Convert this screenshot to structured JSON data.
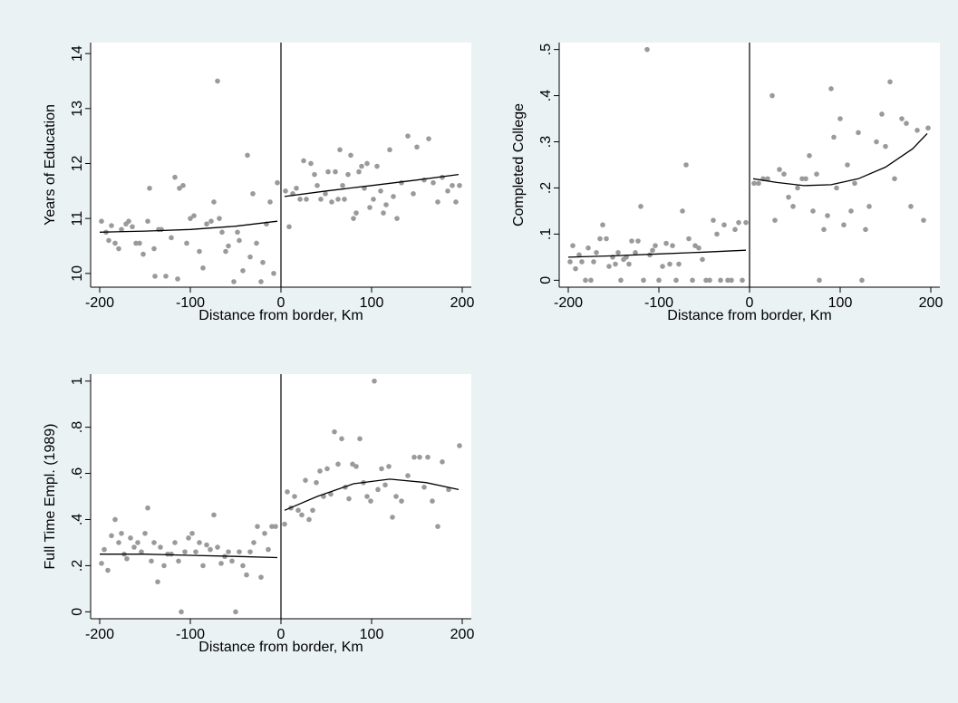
{
  "chart_data": [
    {
      "type": "scatter",
      "xlabel": "Distance from border, Km",
      "ylabel": "Years of Education",
      "xlim": [
        -210,
        210
      ],
      "ylim": [
        9.75,
        14.2
      ],
      "xticks": [
        -200,
        -100,
        0,
        100,
        200
      ],
      "xtick_labels": [
        "-200",
        "-100",
        "0",
        "100",
        "200"
      ],
      "yticks": [
        10,
        11,
        12,
        13,
        14
      ],
      "ytick_labels": [
        "10",
        "11",
        "12",
        "13",
        "14"
      ],
      "cutoff": 0,
      "points": [
        [
          -198,
          10.95
        ],
        [
          -193,
          10.75
        ],
        [
          -190,
          10.6
        ],
        [
          -187,
          10.87
        ],
        [
          -183,
          10.55
        ],
        [
          -179,
          10.45
        ],
        [
          -176,
          10.8
        ],
        [
          -171,
          10.9
        ],
        [
          -168,
          10.95
        ],
        [
          -164,
          10.85
        ],
        [
          -160,
          10.55
        ],
        [
          -156,
          10.55
        ],
        [
          -152,
          10.35
        ],
        [
          -147,
          10.95
        ],
        [
          -145,
          11.55
        ],
        [
          -140,
          10.45
        ],
        [
          -139,
          9.95
        ],
        [
          -135,
          10.8
        ],
        [
          -132,
          10.8
        ],
        [
          -127,
          9.95
        ],
        [
          -121,
          10.65
        ],
        [
          -117,
          11.75
        ],
        [
          -114,
          9.9
        ],
        [
          -112,
          11.55
        ],
        [
          -108,
          11.6
        ],
        [
          -104,
          10.55
        ],
        [
          -100,
          11.0
        ],
        [
          -96,
          11.05
        ],
        [
          -90,
          10.4
        ],
        [
          -86,
          10.1
        ],
        [
          -82,
          10.9
        ],
        [
          -77,
          10.95
        ],
        [
          -74,
          11.3
        ],
        [
          -70,
          13.5
        ],
        [
          -68,
          11.0
        ],
        [
          -65,
          10.75
        ],
        [
          -61,
          10.4
        ],
        [
          -58,
          10.5
        ],
        [
          -52,
          9.85
        ],
        [
          -48,
          10.75
        ],
        [
          -46,
          10.6
        ],
        [
          -42,
          10.05
        ],
        [
          -37,
          12.15
        ],
        [
          -34,
          10.3
        ],
        [
          -31,
          11.45
        ],
        [
          -27,
          10.55
        ],
        [
          -22,
          9.85
        ],
        [
          -20,
          10.2
        ],
        [
          -16,
          10.9
        ],
        [
          -12,
          11.3
        ],
        [
          -8,
          10.0
        ],
        [
          -4,
          11.65
        ],
        [
          5,
          11.5
        ],
        [
          9,
          10.85
        ],
        [
          13,
          11.45
        ],
        [
          17,
          11.55
        ],
        [
          21,
          11.35
        ],
        [
          25,
          12.05
        ],
        [
          28,
          11.35
        ],
        [
          33,
          12.0
        ],
        [
          37,
          11.8
        ],
        [
          40,
          11.6
        ],
        [
          44,
          11.35
        ],
        [
          49,
          11.45
        ],
        [
          52,
          11.85
        ],
        [
          56,
          11.3
        ],
        [
          60,
          11.85
        ],
        [
          63,
          11.35
        ],
        [
          65,
          12.25
        ],
        [
          68,
          11.6
        ],
        [
          70,
          11.35
        ],
        [
          74,
          11.8
        ],
        [
          77,
          12.15
        ],
        [
          80,
          11.0
        ],
        [
          83,
          11.1
        ],
        [
          86,
          11.85
        ],
        [
          89,
          11.95
        ],
        [
          92,
          11.55
        ],
        [
          95,
          12.0
        ],
        [
          98,
          11.2
        ],
        [
          102,
          11.35
        ],
        [
          106,
          11.95
        ],
        [
          110,
          11.5
        ],
        [
          113,
          11.1
        ],
        [
          116,
          11.25
        ],
        [
          120,
          12.25
        ],
        [
          124,
          11.4
        ],
        [
          128,
          11.0
        ],
        [
          133,
          11.65
        ],
        [
          140,
          12.5
        ],
        [
          146,
          11.45
        ],
        [
          150,
          12.3
        ],
        [
          158,
          11.7
        ],
        [
          163,
          12.45
        ],
        [
          168,
          11.65
        ],
        [
          173,
          11.3
        ],
        [
          178,
          11.75
        ],
        [
          184,
          11.5
        ],
        [
          189,
          11.6
        ],
        [
          193,
          11.3
        ],
        [
          197,
          11.6
        ]
      ],
      "fit_left": [
        [
          -200,
          10.75
        ],
        [
          -150,
          10.77
        ],
        [
          -100,
          10.8
        ],
        [
          -50,
          10.86
        ],
        [
          -4,
          10.95
        ]
      ],
      "fit_right": [
        [
          4,
          11.4
        ],
        [
          50,
          11.5
        ],
        [
          100,
          11.6
        ],
        [
          150,
          11.7
        ],
        [
          196,
          11.8
        ]
      ]
    },
    {
      "type": "scatter",
      "xlabel": "Distance from border, Km",
      "ylabel": "Completed College",
      "xlim": [
        -210,
        210
      ],
      "ylim": [
        -0.015,
        0.515
      ],
      "xticks": [
        -200,
        -100,
        0,
        100,
        200
      ],
      "xtick_labels": [
        "-200",
        "-100",
        "0",
        "100",
        "200"
      ],
      "yticks": [
        0,
        0.1,
        0.2,
        0.3,
        0.4,
        0.5
      ],
      "ytick_labels": [
        "0",
        ".1",
        ".2",
        ".3",
        ".4",
        ".5"
      ],
      "cutoff": 0,
      "points": [
        [
          -198,
          0.04
        ],
        [
          -195,
          0.075
        ],
        [
          -192,
          0.025
        ],
        [
          -188,
          0.055
        ],
        [
          -185,
          0.04
        ],
        [
          -181,
          0.0
        ],
        [
          -178,
          0.07
        ],
        [
          -175,
          0.0
        ],
        [
          -172,
          0.04
        ],
        [
          -169,
          0.06
        ],
        [
          -165,
          0.09
        ],
        [
          -162,
          0.12
        ],
        [
          -158,
          0.09
        ],
        [
          -155,
          0.03
        ],
        [
          -151,
          0.05
        ],
        [
          -148,
          0.035
        ],
        [
          -145,
          0.06
        ],
        [
          -142,
          0.0
        ],
        [
          -139,
          0.045
        ],
        [
          -136,
          0.05
        ],
        [
          -133,
          0.035
        ],
        [
          -130,
          0.085
        ],
        [
          -126,
          0.06
        ],
        [
          -123,
          0.085
        ],
        [
          -120,
          0.16
        ],
        [
          -117,
          0.0
        ],
        [
          -113,
          0.5
        ],
        [
          -110,
          0.055
        ],
        [
          -107,
          0.065
        ],
        [
          -104,
          0.075
        ],
        [
          -100,
          0.0
        ],
        [
          -96,
          0.03
        ],
        [
          -92,
          0.08
        ],
        [
          -88,
          0.035
        ],
        [
          -85,
          0.075
        ],
        [
          -81,
          0.0
        ],
        [
          -78,
          0.035
        ],
        [
          -74,
          0.15
        ],
        [
          -70,
          0.25
        ],
        [
          -67,
          0.09
        ],
        [
          -63,
          0.0
        ],
        [
          -60,
          0.075
        ],
        [
          -56,
          0.07
        ],
        [
          -52,
          0.045
        ],
        [
          -48,
          0.0
        ],
        [
          -44,
          0.0
        ],
        [
          -40,
          0.13
        ],
        [
          -36,
          0.1
        ],
        [
          -32,
          0.0
        ],
        [
          -28,
          0.12
        ],
        [
          -24,
          0.0
        ],
        [
          -20,
          0.0
        ],
        [
          -16,
          0.11
        ],
        [
          -12,
          0.125
        ],
        [
          -8,
          0.0
        ],
        [
          -4,
          0.125
        ],
        [
          5,
          0.21
        ],
        [
          10,
          0.21
        ],
        [
          15,
          0.22
        ],
        [
          20,
          0.22
        ],
        [
          25,
          0.4
        ],
        [
          28,
          0.13
        ],
        [
          33,
          0.24
        ],
        [
          38,
          0.23
        ],
        [
          43,
          0.18
        ],
        [
          48,
          0.16
        ],
        [
          53,
          0.2
        ],
        [
          58,
          0.22
        ],
        [
          62,
          0.22
        ],
        [
          66,
          0.27
        ],
        [
          70,
          0.15
        ],
        [
          74,
          0.23
        ],
        [
          77,
          0.0
        ],
        [
          82,
          0.11
        ],
        [
          86,
          0.14
        ],
        [
          90,
          0.415
        ],
        [
          93,
          0.31
        ],
        [
          96,
          0.2
        ],
        [
          100,
          0.35
        ],
        [
          104,
          0.12
        ],
        [
          108,
          0.25
        ],
        [
          112,
          0.15
        ],
        [
          116,
          0.21
        ],
        [
          120,
          0.32
        ],
        [
          124,
          0.0
        ],
        [
          128,
          0.11
        ],
        [
          132,
          0.16
        ],
        [
          140,
          0.3
        ],
        [
          146,
          0.36
        ],
        [
          150,
          0.29
        ],
        [
          155,
          0.43
        ],
        [
          160,
          0.22
        ],
        [
          168,
          0.35
        ],
        [
          173,
          0.34
        ],
        [
          178,
          0.16
        ],
        [
          185,
          0.325
        ],
        [
          192,
          0.13
        ],
        [
          197,
          0.33
        ]
      ],
      "fit_left": [
        [
          -200,
          0.05
        ],
        [
          -150,
          0.053
        ],
        [
          -100,
          0.057
        ],
        [
          -50,
          0.061
        ],
        [
          -4,
          0.065
        ]
      ],
      "fit_right": [
        [
          4,
          0.22
        ],
        [
          30,
          0.212
        ],
        [
          60,
          0.205
        ],
        [
          90,
          0.207
        ],
        [
          120,
          0.22
        ],
        [
          150,
          0.245
        ],
        [
          180,
          0.285
        ],
        [
          196,
          0.318
        ]
      ]
    },
    {
      "type": "scatter",
      "xlabel": "Distance from border, Km",
      "ylabel": "Full Time Empl. (1989)",
      "xlim": [
        -210,
        210
      ],
      "ylim": [
        -0.03,
        1.03
      ],
      "xticks": [
        -200,
        -100,
        0,
        100,
        200
      ],
      "xtick_labels": [
        "-200",
        "-100",
        "0",
        "100",
        "200"
      ],
      "yticks": [
        0,
        0.2,
        0.4,
        0.6,
        0.8,
        1
      ],
      "ytick_labels": [
        "0",
        ".2",
        ".4",
        ".6",
        ".8",
        "1"
      ],
      "cutoff": 0,
      "points": [
        [
          -198,
          0.21
        ],
        [
          -195,
          0.27
        ],
        [
          -191,
          0.18
        ],
        [
          -187,
          0.33
        ],
        [
          -183,
          0.4
        ],
        [
          -179,
          0.3
        ],
        [
          -176,
          0.34
        ],
        [
          -173,
          0.25
        ],
        [
          -170,
          0.23
        ],
        [
          -166,
          0.32
        ],
        [
          -162,
          0.28
        ],
        [
          -158,
          0.3
        ],
        [
          -154,
          0.26
        ],
        [
          -150,
          0.34
        ],
        [
          -147,
          0.45
        ],
        [
          -143,
          0.22
        ],
        [
          -140,
          0.3
        ],
        [
          -136,
          0.13
        ],
        [
          -133,
          0.28
        ],
        [
          -129,
          0.2
        ],
        [
          -125,
          0.25
        ],
        [
          -121,
          0.25
        ],
        [
          -117,
          0.3
        ],
        [
          -113,
          0.22
        ],
        [
          -110,
          0.0
        ],
        [
          -106,
          0.26
        ],
        [
          -102,
          0.32
        ],
        [
          -98,
          0.34
        ],
        [
          -94,
          0.26
        ],
        [
          -90,
          0.3
        ],
        [
          -86,
          0.2
        ],
        [
          -82,
          0.29
        ],
        [
          -78,
          0.27
        ],
        [
          -74,
          0.42
        ],
        [
          -70,
          0.28
        ],
        [
          -66,
          0.21
        ],
        [
          -62,
          0.24
        ],
        [
          -58,
          0.26
        ],
        [
          -54,
          0.22
        ],
        [
          -50,
          0.0
        ],
        [
          -46,
          0.26
        ],
        [
          -42,
          0.2
        ],
        [
          -38,
          0.16
        ],
        [
          -34,
          0.26
        ],
        [
          -30,
          0.3
        ],
        [
          -26,
          0.37
        ],
        [
          -22,
          0.15
        ],
        [
          -18,
          0.34
        ],
        [
          -14,
          0.27
        ],
        [
          -10,
          0.37
        ],
        [
          -6,
          0.37
        ],
        [
          4,
          0.38
        ],
        [
          7,
          0.52
        ],
        [
          11,
          0.45
        ],
        [
          15,
          0.5
        ],
        [
          19,
          0.44
        ],
        [
          23,
          0.42
        ],
        [
          27,
          0.57
        ],
        [
          31,
          0.4
        ],
        [
          35,
          0.44
        ],
        [
          39,
          0.56
        ],
        [
          43,
          0.61
        ],
        [
          47,
          0.5
        ],
        [
          51,
          0.62
        ],
        [
          55,
          0.51
        ],
        [
          59,
          0.78
        ],
        [
          63,
          0.64
        ],
        [
          67,
          0.75
        ],
        [
          71,
          0.54
        ],
        [
          75,
          0.49
        ],
        [
          79,
          0.64
        ],
        [
          83,
          0.63
        ],
        [
          87,
          0.75
        ],
        [
          91,
          0.56
        ],
        [
          95,
          0.5
        ],
        [
          99,
          0.48
        ],
        [
          103,
          1.0
        ],
        [
          107,
          0.53
        ],
        [
          111,
          0.62
        ],
        [
          115,
          0.55
        ],
        [
          119,
          0.63
        ],
        [
          123,
          0.41
        ],
        [
          127,
          0.5
        ],
        [
          133,
          0.48
        ],
        [
          140,
          0.59
        ],
        [
          147,
          0.67
        ],
        [
          153,
          0.67
        ],
        [
          158,
          0.54
        ],
        [
          162,
          0.67
        ],
        [
          167,
          0.48
        ],
        [
          173,
          0.37
        ],
        [
          178,
          0.65
        ],
        [
          185,
          0.53
        ],
        [
          197,
          0.72
        ]
      ],
      "fit_left": [
        [
          -200,
          0.25
        ],
        [
          -150,
          0.25
        ],
        [
          -100,
          0.245
        ],
        [
          -50,
          0.24
        ],
        [
          -4,
          0.235
        ]
      ],
      "fit_right": [
        [
          4,
          0.44
        ],
        [
          40,
          0.5
        ],
        [
          80,
          0.555
        ],
        [
          120,
          0.575
        ],
        [
          160,
          0.56
        ],
        [
          196,
          0.53
        ]
      ]
    }
  ]
}
